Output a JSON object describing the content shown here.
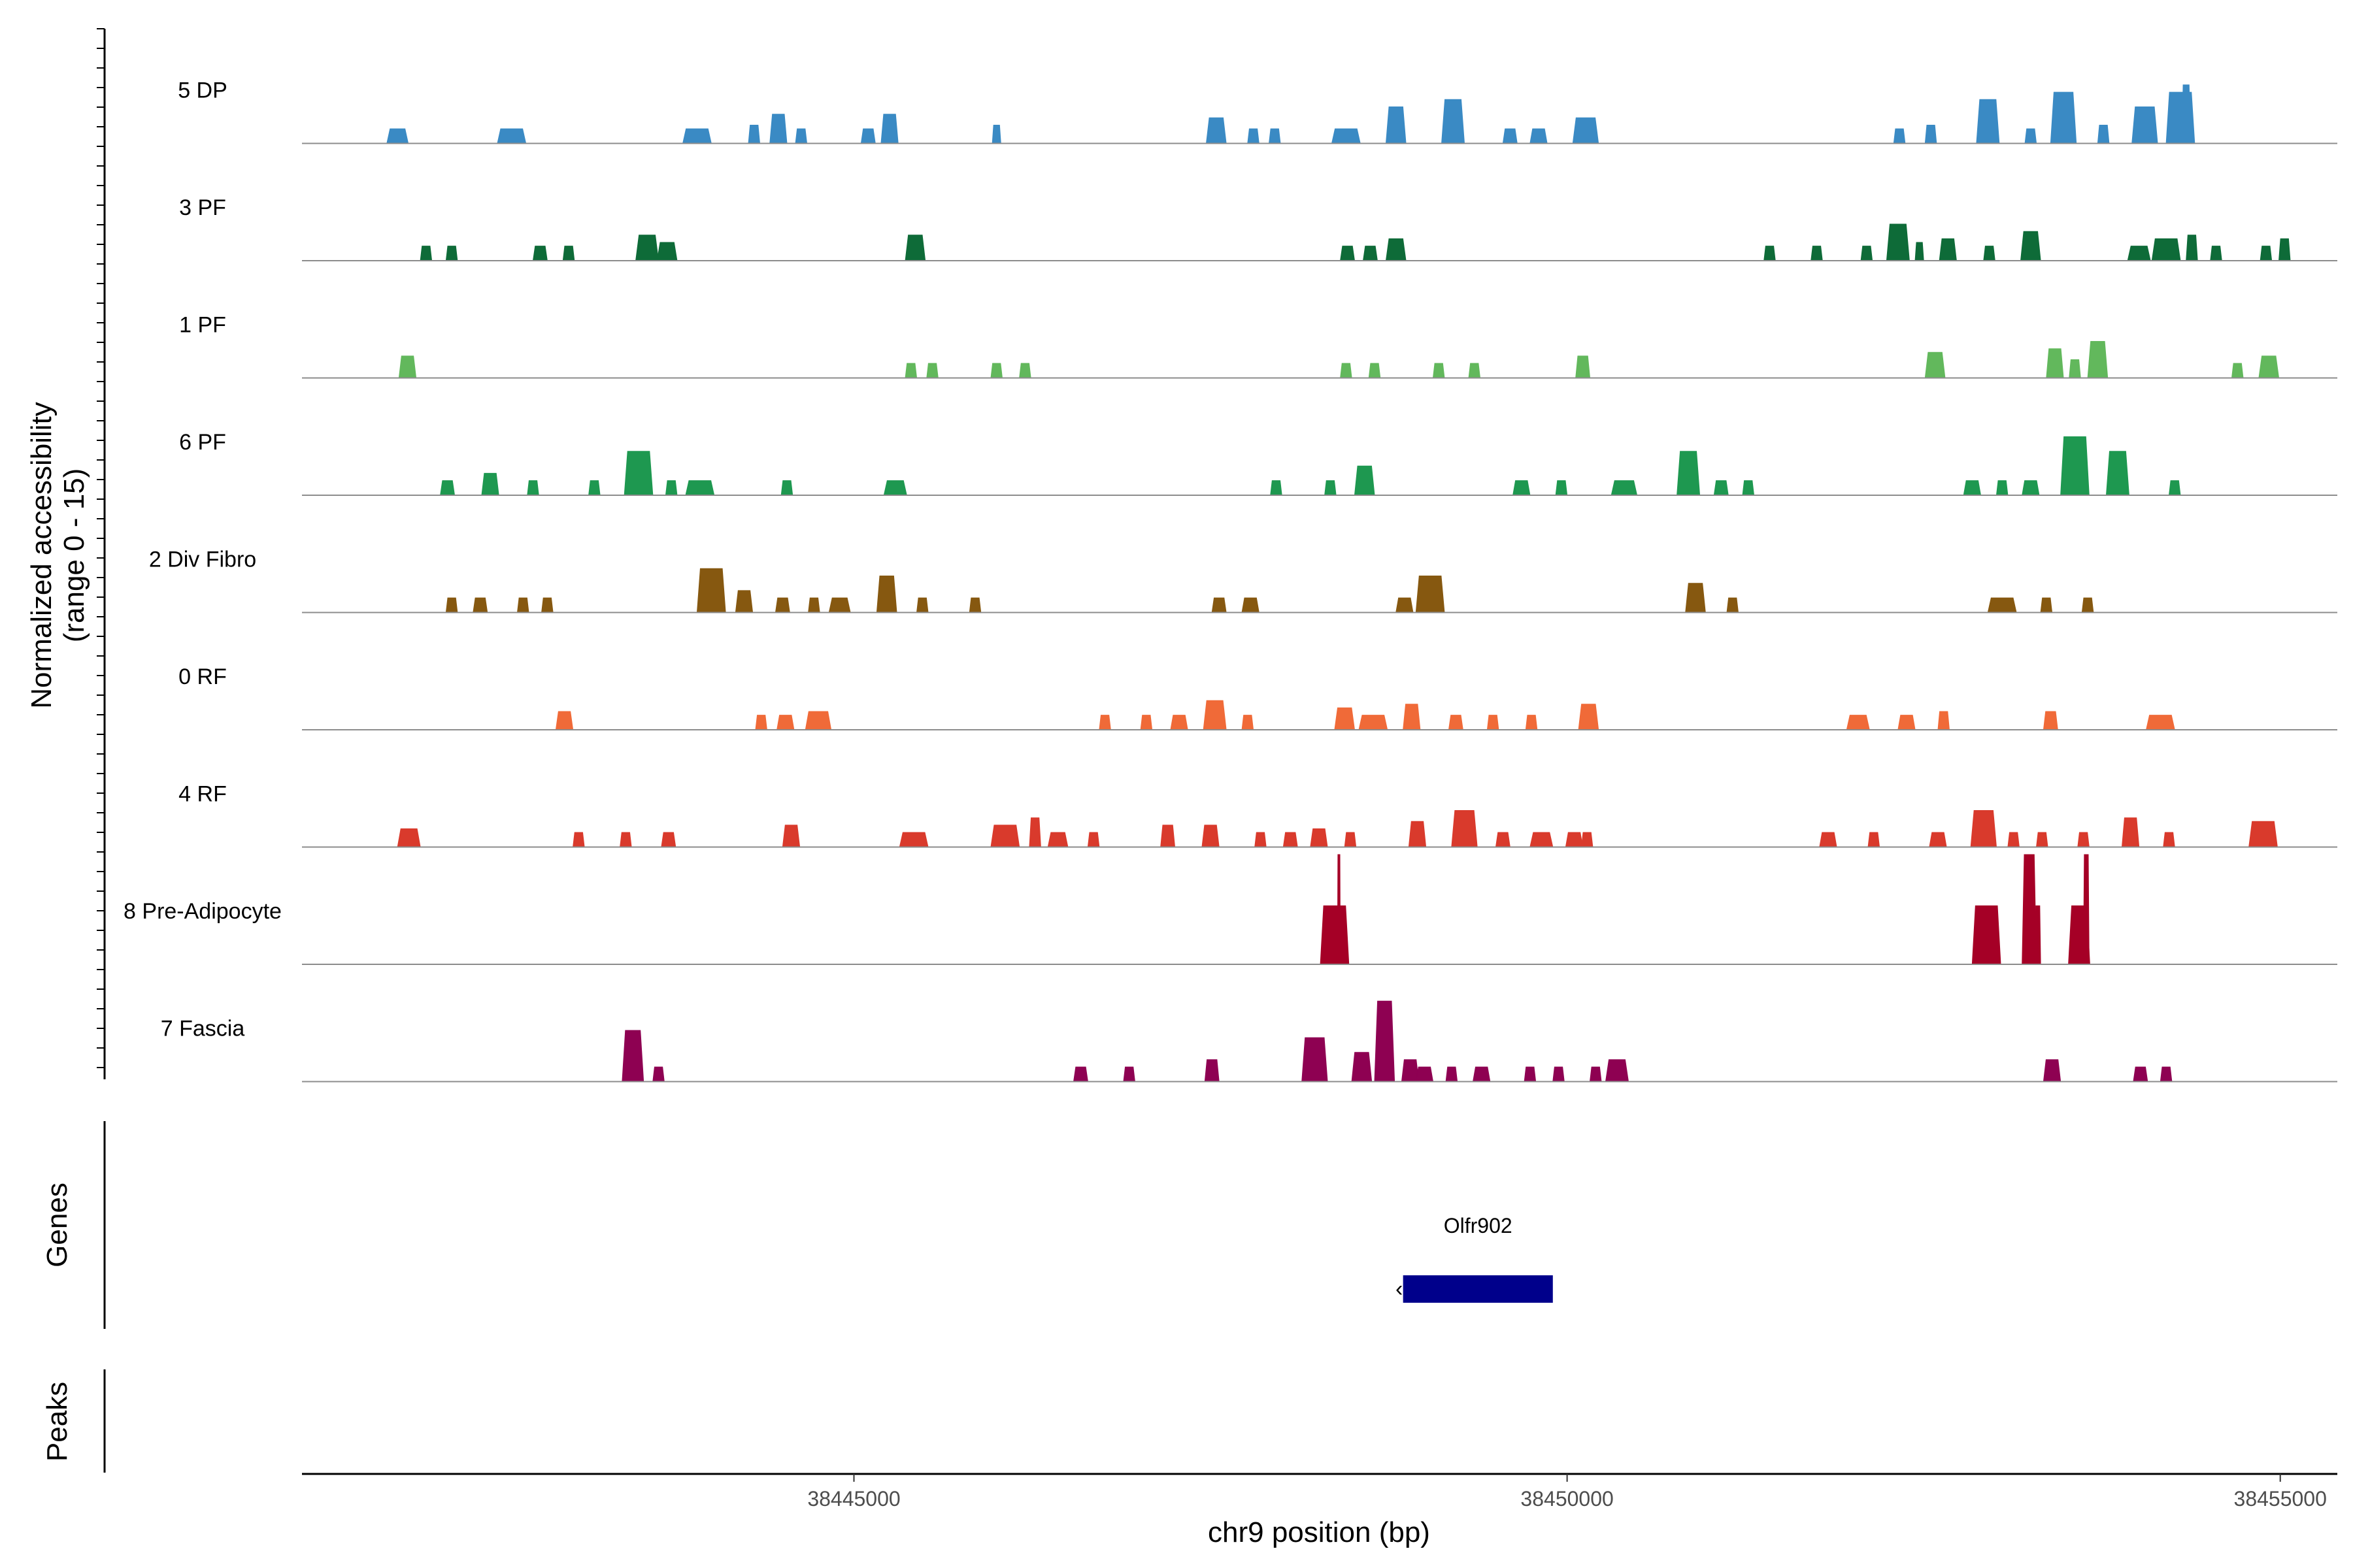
{
  "chart_data": {
    "type": "area",
    "ylabel_line1": "Normalized accessibility",
    "ylabel_line2": "(range 0 - 15)",
    "genes_label": "Genes",
    "peaks_label": "Peaks",
    "xlabel": "chr9 position (bp)",
    "xlim": [
      38441130,
      38455400
    ],
    "ylim": [
      0,
      15
    ],
    "x_ticks": [
      38445000,
      38450000,
      38455000
    ],
    "x_tick_labels": [
      "38445000",
      "38450000",
      "38455000"
    ],
    "gene": {
      "name": "Olfr902",
      "start": 38448850,
      "end": 38449900,
      "strand": "-",
      "color": "#00008B"
    },
    "series": [
      {
        "name": "5 DP",
        "color": "#3A8AC4",
        "peaks": [
          [
            38441800,
            150,
            2
          ],
          [
            38442600,
            200,
            2
          ],
          [
            38443900,
            200,
            2
          ],
          [
            38444300,
            80,
            2.5
          ],
          [
            38444470,
            120,
            4
          ],
          [
            38444630,
            80,
            2
          ],
          [
            38445100,
            100,
            2
          ],
          [
            38445250,
            120,
            4
          ],
          [
            38446000,
            60,
            2.5
          ],
          [
            38447540,
            140,
            3.5
          ],
          [
            38447800,
            80,
            2
          ],
          [
            38447950,
            80,
            2
          ],
          [
            38448450,
            200,
            2
          ],
          [
            38448800,
            140,
            5
          ],
          [
            38449200,
            160,
            6
          ],
          [
            38449600,
            100,
            2
          ],
          [
            38449800,
            120,
            2
          ],
          [
            38450130,
            180,
            3.5
          ],
          [
            38452330,
            80,
            2
          ],
          [
            38452550,
            80,
            2.5
          ],
          [
            38452950,
            160,
            6
          ],
          [
            38453250,
            80,
            2
          ],
          [
            38453480,
            180,
            7
          ],
          [
            38453760,
            80,
            2.5
          ],
          [
            38454050,
            180,
            5
          ],
          [
            38454300,
            200,
            7
          ],
          [
            38454340,
            60,
            8
          ]
        ]
      },
      {
        "name": "3 PF",
        "color": "#0E6B38",
        "peaks": [
          [
            38442000,
            80,
            2
          ],
          [
            38442180,
            80,
            2
          ],
          [
            38442800,
            100,
            2
          ],
          [
            38443000,
            80,
            2
          ],
          [
            38443550,
            160,
            3.5
          ],
          [
            38443690,
            140,
            2.5
          ],
          [
            38445430,
            140,
            3.5
          ],
          [
            38448460,
            100,
            2
          ],
          [
            38448620,
            100,
            2
          ],
          [
            38448800,
            140,
            3
          ],
          [
            38451420,
            80,
            2
          ],
          [
            38451750,
            80,
            2
          ],
          [
            38452100,
            80,
            2
          ],
          [
            38452320,
            160,
            5
          ],
          [
            38452470,
            60,
            2.5
          ],
          [
            38452670,
            120,
            3
          ],
          [
            38452960,
            80,
            2
          ],
          [
            38453250,
            140,
            4
          ],
          [
            38454010,
            160,
            2
          ],
          [
            38454200,
            200,
            3
          ],
          [
            38454380,
            80,
            3.5
          ],
          [
            38454550,
            80,
            2
          ],
          [
            38454900,
            80,
            2
          ],
          [
            38455030,
            80,
            3
          ]
        ]
      },
      {
        "name": "1 PF",
        "color": "#62B85C",
        "peaks": [
          [
            38441870,
            120,
            3
          ],
          [
            38445400,
            80,
            2
          ],
          [
            38445550,
            80,
            2
          ],
          [
            38446000,
            80,
            2
          ],
          [
            38446200,
            80,
            2
          ],
          [
            38448450,
            80,
            2
          ],
          [
            38448650,
            80,
            2
          ],
          [
            38449100,
            80,
            2
          ],
          [
            38449350,
            80,
            2
          ],
          [
            38450110,
            100,
            3
          ],
          [
            38452580,
            140,
            3.5
          ],
          [
            38453420,
            120,
            4
          ],
          [
            38453560,
            80,
            2.5
          ],
          [
            38453720,
            140,
            5
          ],
          [
            38454700,
            80,
            2
          ],
          [
            38454920,
            140,
            3
          ]
        ]
      },
      {
        "name": "6 PF",
        "color": "#1E9850",
        "peaks": [
          [
            38442150,
            100,
            2
          ],
          [
            38442450,
            120,
            3
          ],
          [
            38442750,
            80,
            2
          ],
          [
            38443180,
            80,
            2
          ],
          [
            38443490,
            200,
            6
          ],
          [
            38443720,
            80,
            2
          ],
          [
            38443920,
            200,
            2
          ],
          [
            38444530,
            80,
            2
          ],
          [
            38445290,
            160,
            2
          ],
          [
            38447960,
            80,
            2
          ],
          [
            38448340,
            80,
            2
          ],
          [
            38448580,
            140,
            4
          ],
          [
            38449680,
            120,
            2
          ],
          [
            38449960,
            80,
            2
          ],
          [
            38450400,
            180,
            2
          ],
          [
            38450850,
            160,
            6
          ],
          [
            38451080,
            100,
            2
          ],
          [
            38451270,
            80,
            2
          ],
          [
            38452840,
            120,
            2
          ],
          [
            38453050,
            80,
            2
          ],
          [
            38453250,
            120,
            2
          ],
          [
            38453560,
            200,
            8
          ],
          [
            38453860,
            160,
            6
          ],
          [
            38454260,
            80,
            2
          ]
        ]
      },
      {
        "name": "2 Div Fibro",
        "color": "#865810",
        "peaks": [
          [
            38442180,
            80,
            2
          ],
          [
            38442380,
            100,
            2
          ],
          [
            38442680,
            80,
            2
          ],
          [
            38442850,
            80,
            2
          ],
          [
            38444000,
            200,
            6
          ],
          [
            38444230,
            120,
            3
          ],
          [
            38444500,
            100,
            2
          ],
          [
            38444720,
            80,
            2
          ],
          [
            38444900,
            150,
            2
          ],
          [
            38445230,
            140,
            5
          ],
          [
            38445480,
            80,
            2
          ],
          [
            38445850,
            80,
            2
          ],
          [
            38447560,
            100,
            2
          ],
          [
            38447780,
            120,
            2
          ],
          [
            38448860,
            120,
            2
          ],
          [
            38449040,
            200,
            5
          ],
          [
            38450900,
            140,
            4
          ],
          [
            38451160,
            80,
            2
          ],
          [
            38453050,
            200,
            2
          ],
          [
            38453360,
            80,
            2
          ],
          [
            38453650,
            80,
            2
          ]
        ]
      },
      {
        "name": "0 RF",
        "color": "#F06A38",
        "peaks": [
          [
            38442970,
            120,
            2.5
          ],
          [
            38444350,
            80,
            2
          ],
          [
            38444520,
            120,
            2
          ],
          [
            38444750,
            180,
            2.5
          ],
          [
            38446760,
            80,
            2
          ],
          [
            38447050,
            80,
            2
          ],
          [
            38447280,
            120,
            2
          ],
          [
            38447530,
            160,
            4
          ],
          [
            38447760,
            80,
            2
          ],
          [
            38448440,
            140,
            3
          ],
          [
            38448640,
            200,
            2
          ],
          [
            38448910,
            120,
            3.5
          ],
          [
            38449220,
            100,
            2
          ],
          [
            38449480,
            80,
            2
          ],
          [
            38449750,
            80,
            2
          ],
          [
            38450150,
            140,
            3.5
          ],
          [
            38452040,
            160,
            2
          ],
          [
            38452380,
            120,
            2
          ],
          [
            38452640,
            80,
            2.5
          ],
          [
            38453390,
            100,
            2.5
          ],
          [
            38454160,
            200,
            2
          ]
        ]
      },
      {
        "name": "4 RF",
        "color": "#D93A2C",
        "peaks": [
          [
            38441880,
            160,
            2.5
          ],
          [
            38443070,
            80,
            2
          ],
          [
            38443400,
            80,
            2
          ],
          [
            38443700,
            100,
            2
          ],
          [
            38444560,
            120,
            3
          ],
          [
            38445420,
            200,
            2
          ],
          [
            38446060,
            200,
            3
          ],
          [
            38446270,
            80,
            4
          ],
          [
            38446430,
            140,
            2
          ],
          [
            38446680,
            80,
            2
          ],
          [
            38447200,
            100,
            3
          ],
          [
            38447500,
            120,
            3
          ],
          [
            38447850,
            80,
            2
          ],
          [
            38448060,
            100,
            2
          ],
          [
            38448260,
            120,
            2.5
          ],
          [
            38448480,
            80,
            2
          ],
          [
            38448950,
            120,
            3.5
          ],
          [
            38449280,
            180,
            5
          ],
          [
            38449550,
            100,
            2
          ],
          [
            38449820,
            160,
            2
          ],
          [
            38450050,
            120,
            2
          ],
          [
            38450140,
            80,
            2
          ],
          [
            38451830,
            120,
            2
          ],
          [
            38452150,
            80,
            2
          ],
          [
            38452600,
            120,
            2
          ],
          [
            38452920,
            180,
            5
          ],
          [
            38453130,
            80,
            2
          ],
          [
            38453330,
            80,
            2
          ],
          [
            38453620,
            80,
            2
          ],
          [
            38453950,
            120,
            4
          ],
          [
            38454220,
            80,
            2
          ],
          [
            38454880,
            200,
            3.5
          ]
        ]
      },
      {
        "name": "8 Pre-Adipocyte",
        "color": "#A50026",
        "peaks": [
          [
            38448370,
            200,
            8
          ],
          [
            38448400,
            20,
            15
          ],
          [
            38452940,
            200,
            8
          ],
          [
            38453240,
            100,
            15
          ],
          [
            38453300,
            40,
            8
          ],
          [
            38453590,
            150,
            8
          ],
          [
            38453640,
            40,
            15
          ]
        ]
      },
      {
        "name": "7 Fascia",
        "color": "#8E0152",
        "peaks": [
          [
            38443450,
            150,
            7
          ],
          [
            38443630,
            80,
            2
          ],
          [
            38446590,
            100,
            2
          ],
          [
            38446930,
            80,
            2
          ],
          [
            38447510,
            100,
            3
          ],
          [
            38448230,
            180,
            6
          ],
          [
            38448560,
            140,
            4
          ],
          [
            38448720,
            140,
            11
          ],
          [
            38448900,
            120,
            3
          ],
          [
            38449000,
            120,
            2
          ],
          [
            38449190,
            80,
            2
          ],
          [
            38449400,
            120,
            2
          ],
          [
            38449740,
            80,
            2
          ],
          [
            38449940,
            80,
            2
          ],
          [
            38450200,
            80,
            2
          ],
          [
            38450350,
            160,
            3
          ],
          [
            38453400,
            120,
            3
          ],
          [
            38454020,
            100,
            2
          ],
          [
            38454200,
            80,
            2
          ]
        ]
      }
    ]
  }
}
